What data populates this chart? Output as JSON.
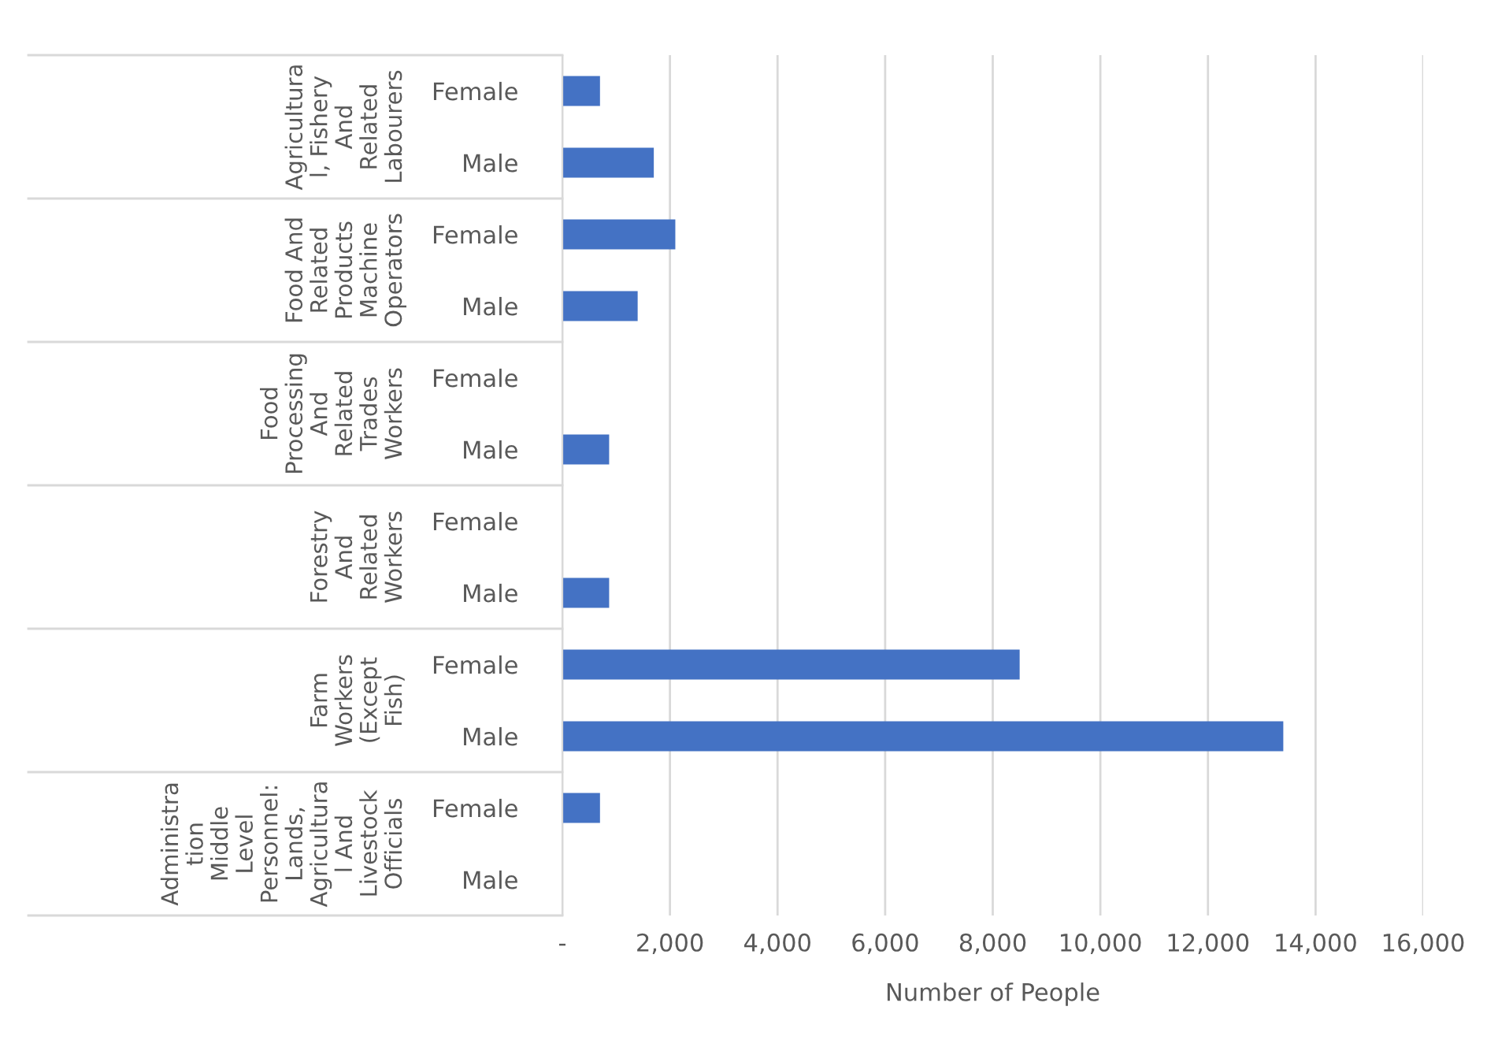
{
  "chart_data": {
    "type": "bar",
    "orientation": "horizontal",
    "xlabel": "Number of People",
    "categories": [
      "Female",
      "Male",
      "Female",
      "Male",
      "Female",
      "Male",
      "Female",
      "Male",
      "Female",
      "Male",
      "Female",
      "Male"
    ],
    "series": [
      {
        "color": "#4472c4",
        "values": [
          700,
          1700,
          2100,
          1400,
          null,
          870,
          null,
          870,
          8500,
          13400,
          700,
          null
        ]
      }
    ],
    "annotations": [
      "Agricultura\nl, Fishery\nAnd\nRelated\nLabourers",
      "Food And\nRelated\nProducts\nMachine\nOperators",
      "Food\nProcessing\nAnd\nRelated\nTrades\nWorkers",
      "Forestry\nAnd\nRelated\nWorkers",
      "Farm\nWorkers\n(Except\nFish)",
      "Administra\ntion\nMiddle\nLevel\nPersonnel:\nLands,\nAgricultura\nl And\nLivestock\nOfficials"
    ],
    "xlim": [
      0,
      16000
    ],
    "xticks": [
      {
        "value": 0,
        "label": "-"
      },
      {
        "value": 2000,
        "label": "2,000"
      },
      {
        "value": 4000,
        "label": "4,000"
      },
      {
        "value": 6000,
        "label": "6,000"
      },
      {
        "value": 8000,
        "label": "8,000"
      },
      {
        "value": 10000,
        "label": "10,000"
      },
      {
        "value": 12000,
        "label": "12,000"
      },
      {
        "value": 14000,
        "label": "14,000"
      },
      {
        "value": 16000,
        "label": "16,000"
      }
    ],
    "grid": "x"
  }
}
